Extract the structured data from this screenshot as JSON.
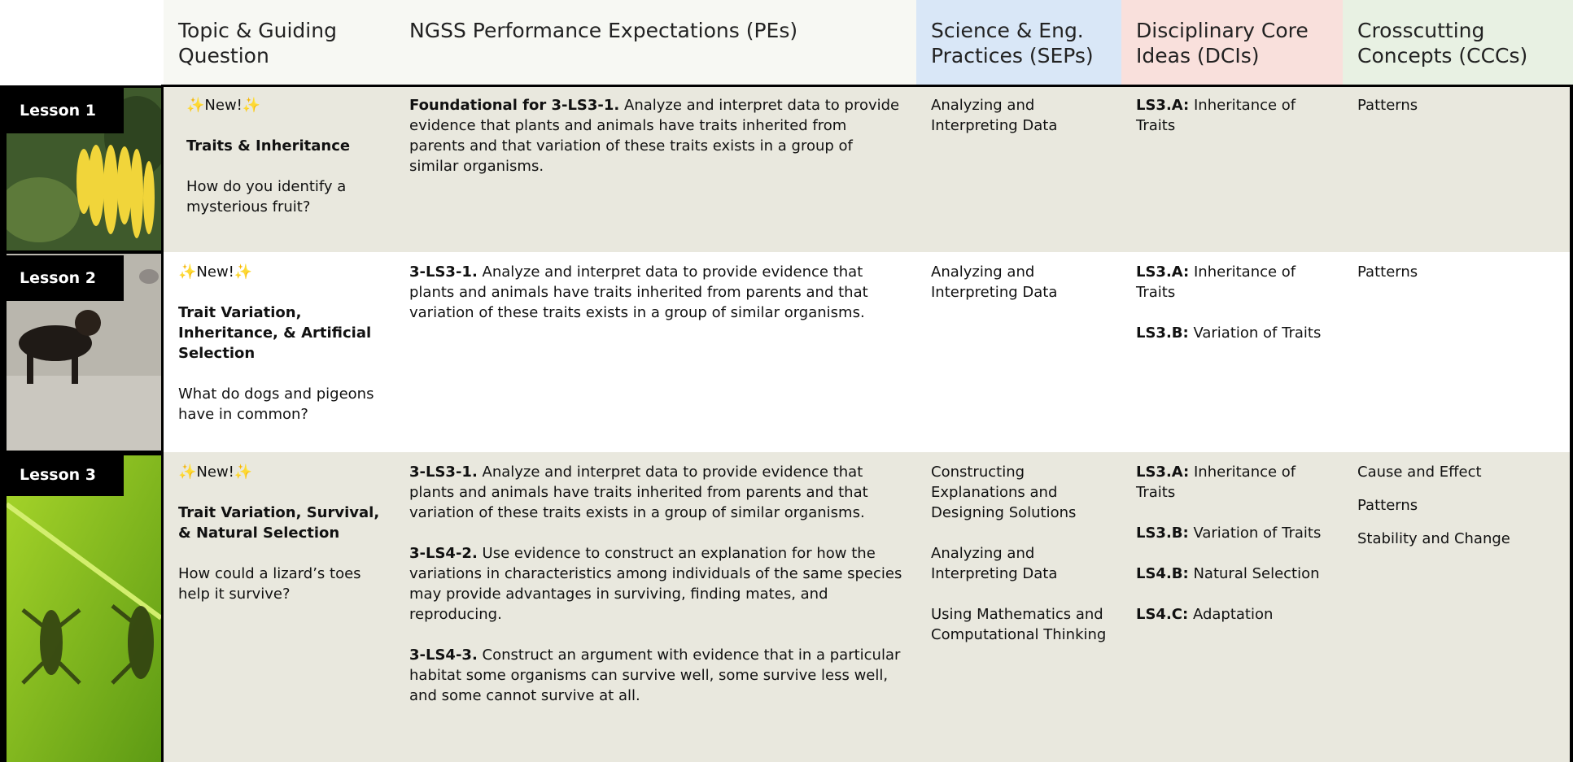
{
  "columns": [
    "Topic & Guiding Question",
    "NGSS Performance Expectations (PEs)",
    "Science & Eng. Practices (SEPs)",
    "Disciplinary Core Ideas (DCIs)",
    "Crosscutting Concepts (CCCs)"
  ],
  "rows": [
    {
      "lesson": "Lesson 1",
      "badge": "✨New!✨",
      "topic": "Traits & Inheritance",
      "question": "How do you identify a mysterious fruit?",
      "pes": [
        {
          "code": "Foundational for 3-LS3-1.",
          "text": "Analyze and interpret data to provide evidence that plants and animals have traits inherited from parents and that variation of these traits exists in a group of similar organisms."
        }
      ],
      "seps": [
        "Analyzing and Interpreting Data"
      ],
      "dcis": [
        {
          "code": "LS3.A:",
          "text": "Inheritance of Traits"
        }
      ],
      "cccs": [
        "Patterns"
      ]
    },
    {
      "lesson": "Lesson 2",
      "badge": "✨New!✨",
      "topic": "Trait Variation, Inheritance, & Artificial Selection",
      "question": "What do dogs and pigeons have in common?",
      "pes": [
        {
          "code": "3-LS3-1.",
          "text": "Analyze and interpret data to provide evidence that plants and animals have traits inherited from parents and that variation of these traits exists in a group of similar organisms."
        }
      ],
      "seps": [
        "Analyzing and Interpreting Data"
      ],
      "dcis": [
        {
          "code": "LS3.A:",
          "text": "Inheritance of Traits"
        },
        {
          "code": "LS3.B:",
          "text": "Variation of Traits"
        }
      ],
      "cccs": [
        "Patterns"
      ]
    },
    {
      "lesson": "Lesson 3",
      "badge": "✨New!✨",
      "topic": "Trait Variation, Survival, & Natural Selection",
      "question": "How could a lizard’s toes help it survive?",
      "pes": [
        {
          "code": "3-LS3-1.",
          "text": "Analyze and interpret data to provide evidence that plants and animals have traits inherited from parents and that variation of these traits exists in a group of similar organisms."
        },
        {
          "code": "3-LS4-2.",
          "text": "Use evidence to construct an explanation for how the variations in characteristics among individuals of the same species may provide advantages in surviving, finding mates, and reproducing."
        },
        {
          "code": "3-LS4-3.",
          "text": "Construct an argument with evidence that in a particular habitat some organisms can survive well, some survive less well, and some cannot survive at all."
        }
      ],
      "seps": [
        "Constructing Explanations and Designing Solutions",
        "Analyzing and Interpreting Data",
        "Using Mathematics and Computational Thinking"
      ],
      "dcis": [
        {
          "code": "LS3.A:",
          "text": "Inheritance of Traits"
        },
        {
          "code": "LS3.B:",
          "text": "Variation of Traits"
        },
        {
          "code": "LS4.B:",
          "text": "Natural Selection"
        },
        {
          "code": "LS4.C:",
          "text": "Adaptation"
        }
      ],
      "cccs": [
        "Cause and Effect",
        "Patterns",
        "Stability and Change"
      ]
    }
  ]
}
